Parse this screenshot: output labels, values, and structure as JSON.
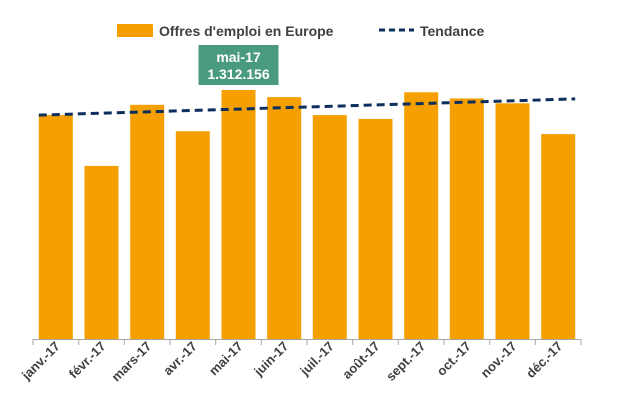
{
  "colors": {
    "bar": "#F5A000",
    "trend": "#0D2F5E",
    "annotation_bg": "#4A9A82",
    "annotation_text": "#FFFFFF",
    "axis": "#A6A6A6",
    "text": "#404040"
  },
  "chart_data": {
    "type": "bar",
    "categories": [
      "janv.-17",
      "févr.-17",
      "mars-17",
      "avr.-17",
      "mai-17",
      "juin-17",
      "juil.-17",
      "août-17",
      "sept.-17",
      "oct.-17",
      "nov.-17",
      "déc.-17"
    ],
    "series": [
      {
        "name": "Offres d'emploi en Europe",
        "values": [
          1180000,
          912000,
          1234000,
          1095000,
          1312156,
          1275000,
          1180000,
          1160000,
          1300000,
          1268000,
          1242000,
          1080000
        ]
      }
    ],
    "trend": {
      "name": "Tendance",
      "style": "dashed",
      "start": 1180000,
      "end": 1265000
    },
    "annotation": {
      "category": "mai-17",
      "label": "mai-17",
      "value_text": "1.312.156"
    },
    "ylim": [
      0,
      1312156
    ],
    "legend_position": "top",
    "grid": false
  }
}
